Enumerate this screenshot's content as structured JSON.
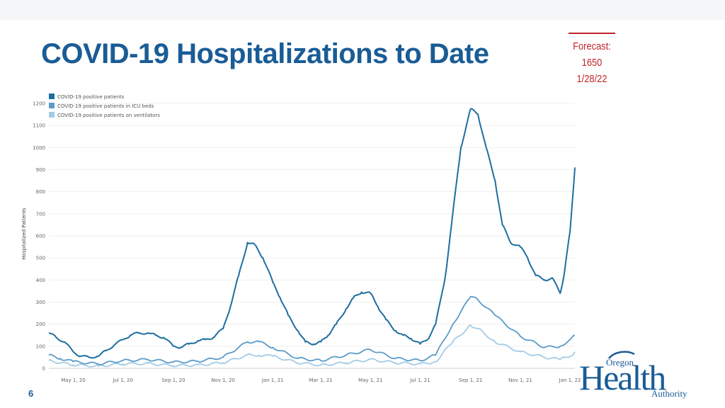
{
  "slide": {
    "title": "COVID-19 Hospitalizations to Date",
    "page_number": "6"
  },
  "forecast": {
    "label": "Forecast:",
    "value": "1650",
    "date": "1/28/22",
    "color": "#c0262c"
  },
  "logo": {
    "word_top": "Oregon",
    "word_main": "Health",
    "word_bottom": "Authority",
    "color": "#1a5c96"
  },
  "chart_data": {
    "type": "line",
    "xlabel": "",
    "ylabel": "Hospitalized Patients",
    "ylim": [
      0,
      1200
    ],
    "yticks": [
      0,
      100,
      200,
      300,
      400,
      500,
      600,
      700,
      800,
      900,
      1000,
      1100,
      1200
    ],
    "xlim": [
      "2020-04-01",
      "2022-01-07"
    ],
    "xticks": [
      "May 1, 20",
      "Jul 1, 20",
      "Sep 1, 20",
      "Nov 1, 20",
      "Jan 1, 21",
      "Mar 1, 21",
      "May 1, 21",
      "Jul 1, 21",
      "Sep 1, 21",
      "Nov 1, 21",
      "Jan 1, 22"
    ],
    "xtick_dates": [
      "2020-05-01",
      "2020-07-01",
      "2020-09-01",
      "2020-11-01",
      "2021-01-01",
      "2021-03-01",
      "2021-05-01",
      "2021-07-01",
      "2021-09-01",
      "2021-11-01",
      "2022-01-01"
    ],
    "grid": true,
    "legend": "top-left",
    "series": [
      {
        "name": "COVID-19 positive patients",
        "color": "#1d6ea0",
        "points": [
          [
            "2020-04-01",
            160
          ],
          [
            "2020-04-10",
            140
          ],
          [
            "2020-04-20",
            120
          ],
          [
            "2020-05-01",
            75
          ],
          [
            "2020-05-10",
            55
          ],
          [
            "2020-05-20",
            50
          ],
          [
            "2020-06-01",
            55
          ],
          [
            "2020-06-10",
            80
          ],
          [
            "2020-06-20",
            105
          ],
          [
            "2020-07-01",
            130
          ],
          [
            "2020-07-10",
            150
          ],
          [
            "2020-07-20",
            160
          ],
          [
            "2020-08-01",
            160
          ],
          [
            "2020-08-10",
            150
          ],
          [
            "2020-08-20",
            140
          ],
          [
            "2020-09-01",
            100
          ],
          [
            "2020-09-10",
            95
          ],
          [
            "2020-09-20",
            110
          ],
          [
            "2020-10-01",
            125
          ],
          [
            "2020-10-10",
            130
          ],
          [
            "2020-10-20",
            140
          ],
          [
            "2020-11-01",
            180
          ],
          [
            "2020-11-10",
            280
          ],
          [
            "2020-11-20",
            420
          ],
          [
            "2020-12-01",
            570
          ],
          [
            "2020-12-10",
            560
          ],
          [
            "2020-12-20",
            500
          ],
          [
            "2021-01-01",
            390
          ],
          [
            "2021-01-10",
            320
          ],
          [
            "2021-01-20",
            240
          ],
          [
            "2021-02-01",
            170
          ],
          [
            "2021-02-10",
            120
          ],
          [
            "2021-02-20",
            110
          ],
          [
            "2021-03-01",
            120
          ],
          [
            "2021-03-10",
            150
          ],
          [
            "2021-03-20",
            200
          ],
          [
            "2021-04-01",
            270
          ],
          [
            "2021-04-10",
            320
          ],
          [
            "2021-04-20",
            345
          ],
          [
            "2021-05-01",
            340
          ],
          [
            "2021-05-10",
            280
          ],
          [
            "2021-05-20",
            220
          ],
          [
            "2021-06-01",
            170
          ],
          [
            "2021-06-10",
            150
          ],
          [
            "2021-06-20",
            135
          ],
          [
            "2021-07-01",
            110
          ],
          [
            "2021-07-10",
            130
          ],
          [
            "2021-07-20",
            200
          ],
          [
            "2021-08-01",
            420
          ],
          [
            "2021-08-10",
            700
          ],
          [
            "2021-08-20",
            1000
          ],
          [
            "2021-09-01",
            1175
          ],
          [
            "2021-09-10",
            1150
          ],
          [
            "2021-09-20",
            1000
          ],
          [
            "2021-10-01",
            850
          ],
          [
            "2021-10-10",
            650
          ],
          [
            "2021-10-20",
            570
          ],
          [
            "2021-11-01",
            550
          ],
          [
            "2021-11-10",
            500
          ],
          [
            "2021-11-20",
            420
          ],
          [
            "2021-12-01",
            400
          ],
          [
            "2021-12-10",
            410
          ],
          [
            "2021-12-20",
            340
          ],
          [
            "2021-12-25",
            430
          ],
          [
            "2022-01-01",
            620
          ],
          [
            "2022-01-07",
            910
          ]
        ]
      },
      {
        "name": "COVID-19 positive patients in ICU beds",
        "color": "#5b9bc9",
        "points": [
          [
            "2020-04-01",
            60
          ],
          [
            "2020-04-15",
            45
          ],
          [
            "2020-05-01",
            30
          ],
          [
            "2020-06-01",
            20
          ],
          [
            "2020-07-01",
            35
          ],
          [
            "2020-08-01",
            40
          ],
          [
            "2020-09-01",
            28
          ],
          [
            "2020-10-01",
            32
          ],
          [
            "2020-11-01",
            50
          ],
          [
            "2020-12-01",
            120
          ],
          [
            "2020-12-15",
            120
          ],
          [
            "2021-01-01",
            95
          ],
          [
            "2021-02-01",
            45
          ],
          [
            "2021-03-01",
            35
          ],
          [
            "2021-04-01",
            60
          ],
          [
            "2021-05-01",
            85
          ],
          [
            "2021-06-01",
            45
          ],
          [
            "2021-07-01",
            35
          ],
          [
            "2021-07-20",
            60
          ],
          [
            "2021-08-10",
            200
          ],
          [
            "2021-09-01",
            325
          ],
          [
            "2021-09-10",
            310
          ],
          [
            "2021-10-01",
            240
          ],
          [
            "2021-11-01",
            145
          ],
          [
            "2021-12-01",
            95
          ],
          [
            "2021-12-20",
            100
          ],
          [
            "2022-01-01",
            130
          ],
          [
            "2022-01-07",
            150
          ]
        ]
      },
      {
        "name": "COVID-19 positive patients on ventilators",
        "color": "#a4cbe6",
        "points": [
          [
            "2020-04-01",
            35
          ],
          [
            "2020-05-01",
            15
          ],
          [
            "2020-06-01",
            10
          ],
          [
            "2020-07-01",
            20
          ],
          [
            "2020-08-01",
            22
          ],
          [
            "2020-09-01",
            12
          ],
          [
            "2020-10-01",
            15
          ],
          [
            "2020-11-01",
            25
          ],
          [
            "2020-12-01",
            60
          ],
          [
            "2020-12-15",
            60
          ],
          [
            "2021-01-01",
            55
          ],
          [
            "2021-02-01",
            25
          ],
          [
            "2021-03-01",
            15
          ],
          [
            "2021-04-01",
            25
          ],
          [
            "2021-05-01",
            40
          ],
          [
            "2021-06-01",
            25
          ],
          [
            "2021-07-01",
            20
          ],
          [
            "2021-07-20",
            30
          ],
          [
            "2021-08-10",
            120
          ],
          [
            "2021-09-01",
            195
          ],
          [
            "2021-09-10",
            180
          ],
          [
            "2021-10-01",
            120
          ],
          [
            "2021-11-01",
            75
          ],
          [
            "2021-12-01",
            50
          ],
          [
            "2021-12-20",
            40
          ],
          [
            "2022-01-01",
            55
          ],
          [
            "2022-01-07",
            75
          ]
        ]
      }
    ]
  }
}
